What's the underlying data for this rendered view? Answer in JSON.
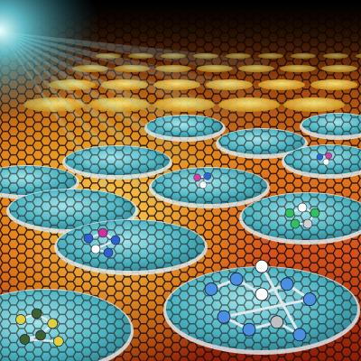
{
  "image": {
    "subject": "graphene-lattice",
    "palette": {
      "background": "#000000",
      "sheet_hot": "#e8a21a",
      "sheet_mid": "#d4531a",
      "sheet_deep": "#7a1a08",
      "lattice_line": "#1a0a04",
      "well_fill": "#3fb8c8",
      "well_rim": "#dce9ee",
      "light_beam": "#7fe6ff"
    }
  }
}
